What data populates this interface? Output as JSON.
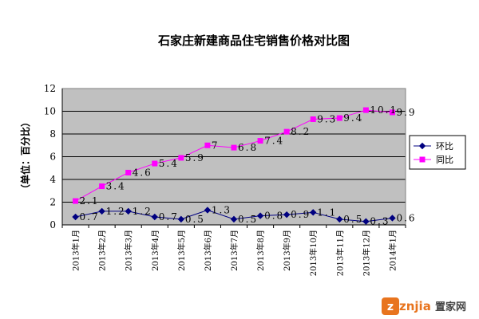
{
  "chart_data": {
    "type": "line",
    "title": "石家庄新建商品住宅销售价格对比图",
    "ylabel": "（单位：百分比）",
    "xlabel": "",
    "ylim": [
      0,
      12
    ],
    "yticks": [
      "0",
      "2",
      "4",
      "6",
      "8",
      "10",
      "12"
    ],
    "grid": true,
    "legend_position": "right",
    "categories": [
      "2013年1月",
      "2013年2月",
      "2013年3月",
      "2013年4月",
      "2013年5月",
      "2013年6月",
      "2013年7月",
      "2013年8月",
      "2013年9月",
      "2013年10月",
      "2013年11月",
      "2013年12月",
      "2014年1月"
    ],
    "series": [
      {
        "name": "环比",
        "color": "#000080",
        "marker": "diamond",
        "values": [
          0.7,
          1.2,
          1.2,
          0.7,
          0.5,
          1.3,
          0.5,
          0.8,
          0.9,
          1.1,
          0.5,
          0.3,
          0.6
        ],
        "labels": [
          "0.7",
          "1.2",
          "1.2",
          "0.7",
          "0.5",
          "1.3",
          "0.5",
          "0.8",
          "0.9",
          "1.1",
          "0.5",
          "0.3",
          "0.6"
        ]
      },
      {
        "name": "同比",
        "color": "#FF00FF",
        "marker": "square",
        "values": [
          2.1,
          3.4,
          4.6,
          5.4,
          5.9,
          7,
          6.8,
          7.4,
          8.2,
          9.3,
          9.4,
          10.1,
          9.9
        ],
        "labels": [
          "2.1",
          "3.4",
          "4.6",
          "5.4",
          "5.9",
          "7",
          "6.8",
          "7.4",
          "8.2",
          "9.3",
          "9.4",
          "10.1",
          "9.9"
        ]
      }
    ],
    "plot_background": "#C0C0C0"
  },
  "watermark": {
    "logo_text": "znjia",
    "brand": "置家网"
  }
}
